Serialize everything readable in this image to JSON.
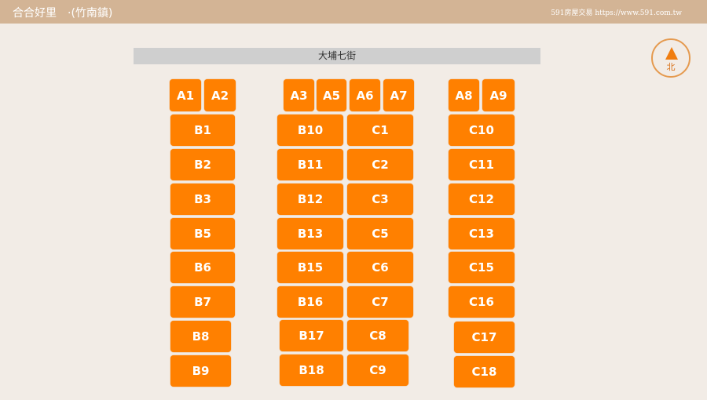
{
  "header": {
    "title": "合合好里　·(竹南鎮)",
    "site": "591房屋交易 https://www.591.com.tw"
  },
  "street": "大埔七街",
  "compass": {
    "label": "北",
    "icon": "north-arrow-icon",
    "color": "#f07d10"
  },
  "colors": {
    "cell": "#ff8000",
    "header": "#d3b495",
    "background": "#f2ece6"
  },
  "cells": [
    "A1",
    "A2",
    "A3",
    "A5",
    "A6",
    "A7",
    "A8",
    "A9",
    "B1",
    "B2",
    "B3",
    "B5",
    "B6",
    "B7",
    "B8",
    "B9",
    "B10",
    "B11",
    "B12",
    "B13",
    "B15",
    "B16",
    "B17",
    "B18",
    "C1",
    "C2",
    "C3",
    "C5",
    "C6",
    "C7",
    "C8",
    "C9",
    "C10",
    "C11",
    "C12",
    "C13",
    "C15",
    "C16",
    "C17",
    "C18"
  ]
}
